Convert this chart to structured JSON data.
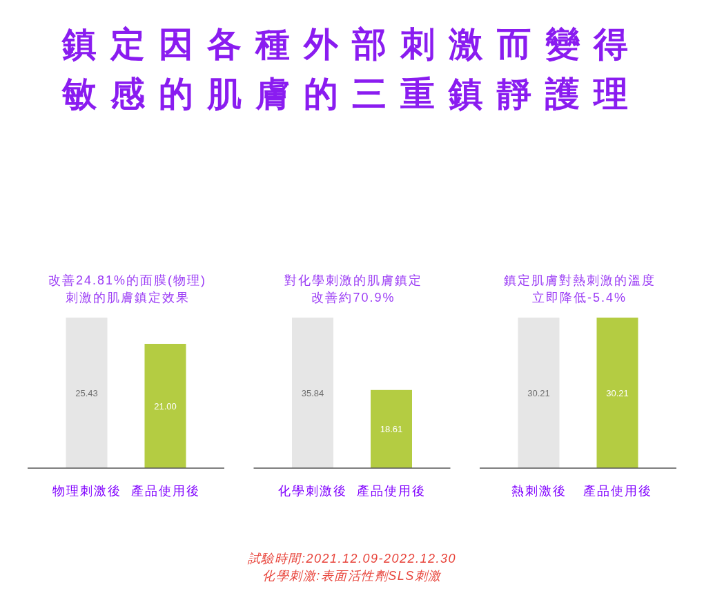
{
  "chart_data": [
    {
      "type": "other",
      "title": "鎮定因各種外部刺激而變得敏感的肌膚的三重鎮靜護理"
    },
    {
      "type": "bar",
      "title": "改善24.81%的面膜(物理)刺激的肌膚鎮定效果",
      "categories": [
        "物理刺激後",
        "產品使用後"
      ],
      "values": [
        25.43,
        21.0
      ],
      "value_labels": [
        "25.43",
        "21.00"
      ],
      "colors": [
        "#e6e6e6",
        "#b4cc42"
      ]
    },
    {
      "type": "bar",
      "title": "對化學刺激的肌膚鎮定改善約70.9%",
      "categories": [
        "化學刺激後",
        "產品使用後"
      ],
      "values": [
        35.84,
        18.61
      ],
      "value_labels": [
        "35.84",
        "18.61"
      ],
      "colors": [
        "#e6e6e6",
        "#b4cc42"
      ]
    },
    {
      "type": "bar",
      "title": "鎮定肌膚對熱刺激的溫度立即降低-5.4%",
      "categories": [
        "熱刺激後",
        "產品使用後"
      ],
      "values": [
        30.21,
        30.21
      ],
      "value_labels": [
        "30.21",
        "30.21"
      ],
      "colors": [
        "#e6e6e6",
        "#b4cc42"
      ]
    },
    {
      "type": "other",
      "annotations": [
        "試驗時間:2021.12.09-2022.12.30",
        "化學刺激:表面活性劑SLS刺激"
      ]
    }
  ]
}
